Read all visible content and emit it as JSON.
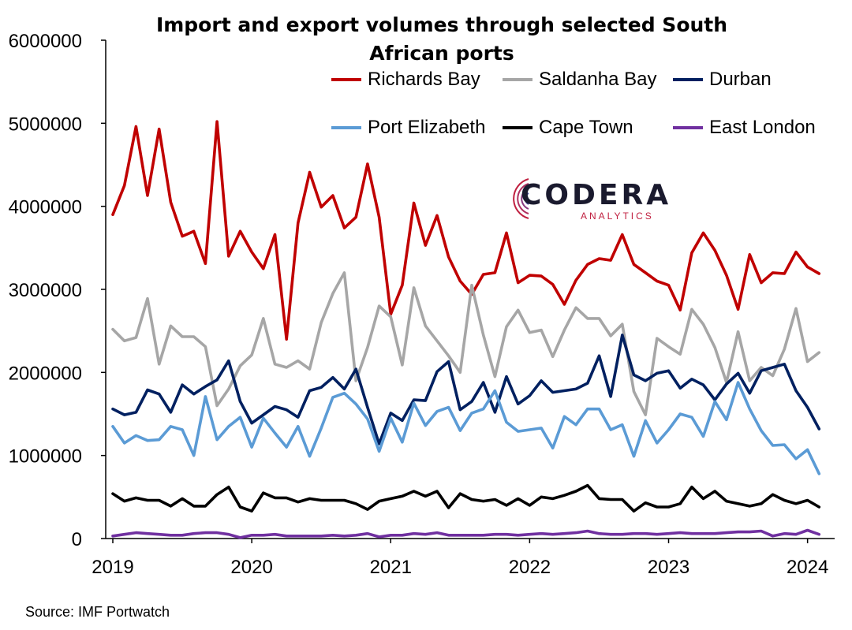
{
  "chart_data": {
    "type": "line",
    "title": "Import and export volumes through selected South African ports",
    "source": "Source: IMF Portwatch",
    "xlabel": "",
    "ylabel": "",
    "ylim": [
      0,
      6000000
    ],
    "yticks": [
      "0",
      "1000000",
      "2000000",
      "3000000",
      "4000000",
      "5000000",
      "6000000"
    ],
    "xticks": [
      "2019",
      "2020",
      "2021",
      "2022",
      "2023",
      "2024"
    ],
    "x_start": "2019-01",
    "x_end": "2024-03",
    "legend_position": "top",
    "grid": false,
    "logo": {
      "name": "CODERA",
      "sub": "ANALYTICS"
    },
    "series": [
      {
        "name": "Richards Bay",
        "color": "#c00000",
        "values": [
          3900000,
          4250000,
          4960000,
          4130000,
          4930000,
          4050000,
          3640000,
          3700000,
          3310000,
          5020000,
          3400000,
          3700000,
          3450000,
          3250000,
          3660000,
          2400000,
          3800000,
          4410000,
          3990000,
          4130000,
          3740000,
          3870000,
          4510000,
          3870000,
          2700000,
          3050000,
          4040000,
          3530000,
          3890000,
          3390000,
          3100000,
          2940000,
          3180000,
          3200000,
          3680000,
          3080000,
          3170000,
          3160000,
          3060000,
          2820000,
          3110000,
          3300000,
          3370000,
          3350000,
          3660000,
          3300000,
          3200000,
          3100000,
          3050000,
          2750000,
          3440000,
          3680000,
          3470000,
          3170000,
          2760000,
          3420000,
          3080000,
          3200000,
          3190000,
          3450000,
          3270000,
          3190000
        ],
        "values_note_end": 3190000
      },
      {
        "name": "Saldanha Bay",
        "color": "#a6a6a6",
        "values": [
          2520000,
          2380000,
          2420000,
          2890000,
          2100000,
          2560000,
          2430000,
          2430000,
          2310000,
          1600000,
          1800000,
          2080000,
          2210000,
          2650000,
          2100000,
          2060000,
          2140000,
          2040000,
          2600000,
          2950000,
          3200000,
          1900000,
          2300000,
          2800000,
          2670000,
          2090000,
          3020000,
          2560000,
          2380000,
          2200000,
          2000000,
          3050000,
          2450000,
          1950000,
          2550000,
          2750000,
          2480000,
          2510000,
          2190000,
          2510000,
          2780000,
          2650000,
          2650000,
          2440000,
          2580000,
          1770000,
          1490000,
          2410000,
          2310000,
          2220000,
          2760000,
          2580000,
          2300000,
          1880000,
          2490000,
          1900000,
          2060000,
          1960000,
          2280000,
          2770000,
          2130000,
          2240000
        ]
      },
      {
        "name": "Durban",
        "color": "#002060",
        "values": [
          1560000,
          1490000,
          1520000,
          1790000,
          1740000,
          1520000,
          1850000,
          1740000,
          1830000,
          1910000,
          2140000,
          1650000,
          1390000,
          1490000,
          1590000,
          1550000,
          1460000,
          1780000,
          1820000,
          1940000,
          1800000,
          2040000,
          1580000,
          1140000,
          1510000,
          1420000,
          1670000,
          1660000,
          2010000,
          2130000,
          1550000,
          1650000,
          1880000,
          1520000,
          1950000,
          1620000,
          1720000,
          1900000,
          1760000,
          1780000,
          1800000,
          1870000,
          2200000,
          1710000,
          2450000,
          1970000,
          1900000,
          1990000,
          2020000,
          1810000,
          1920000,
          1850000,
          1670000,
          1860000,
          1990000,
          1750000,
          2020000,
          2060000,
          2100000,
          1780000,
          1580000,
          1320000
        ]
      },
      {
        "name": "Port Elizabeth",
        "color": "#5b9bd5",
        "values": [
          1350000,
          1150000,
          1240000,
          1180000,
          1190000,
          1350000,
          1310000,
          1000000,
          1710000,
          1190000,
          1350000,
          1460000,
          1100000,
          1450000,
          1270000,
          1100000,
          1350000,
          990000,
          1330000,
          1700000,
          1750000,
          1620000,
          1440000,
          1050000,
          1450000,
          1160000,
          1630000,
          1360000,
          1530000,
          1580000,
          1300000,
          1510000,
          1560000,
          1780000,
          1400000,
          1290000,
          1310000,
          1330000,
          1090000,
          1470000,
          1370000,
          1560000,
          1560000,
          1310000,
          1370000,
          990000,
          1420000,
          1150000,
          1310000,
          1500000,
          1460000,
          1230000,
          1650000,
          1430000,
          1880000,
          1560000,
          1300000,
          1120000,
          1130000,
          960000,
          1070000,
          780000
        ]
      },
      {
        "name": "Cape Town",
        "color": "#000000",
        "values": [
          540000,
          450000,
          490000,
          460000,
          460000,
          390000,
          480000,
          390000,
          390000,
          530000,
          620000,
          380000,
          330000,
          550000,
          490000,
          490000,
          440000,
          480000,
          460000,
          460000,
          460000,
          420000,
          350000,
          450000,
          480000,
          510000,
          570000,
          510000,
          570000,
          370000,
          540000,
          470000,
          450000,
          470000,
          400000,
          480000,
          400000,
          500000,
          480000,
          520000,
          570000,
          640000,
          480000,
          470000,
          470000,
          330000,
          430000,
          380000,
          380000,
          420000,
          620000,
          480000,
          570000,
          450000,
          420000,
          390000,
          420000,
          530000,
          460000,
          420000,
          460000,
          380000
        ]
      },
      {
        "name": "East London",
        "color": "#7030a0",
        "values": [
          30000,
          50000,
          70000,
          60000,
          50000,
          40000,
          40000,
          60000,
          70000,
          70000,
          50000,
          10000,
          40000,
          40000,
          50000,
          30000,
          30000,
          30000,
          30000,
          40000,
          30000,
          40000,
          60000,
          20000,
          40000,
          40000,
          60000,
          50000,
          70000,
          40000,
          40000,
          40000,
          40000,
          50000,
          50000,
          40000,
          50000,
          60000,
          50000,
          60000,
          70000,
          90000,
          60000,
          50000,
          50000,
          60000,
          60000,
          50000,
          60000,
          70000,
          60000,
          60000,
          60000,
          70000,
          80000,
          80000,
          90000,
          30000,
          60000,
          50000,
          100000,
          50000
        ]
      }
    ]
  }
}
